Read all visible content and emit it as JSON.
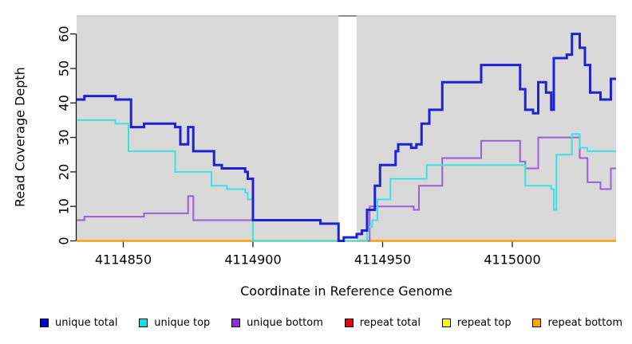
{
  "figure": {
    "xlabel": "Coordinate in Reference Genome",
    "ylabel": "Read Coverage Depth"
  },
  "chart_data": {
    "type": "line",
    "step": true,
    "title": "",
    "xlabel": "Coordinate in Reference Genome",
    "ylabel": "Read Coverage Depth",
    "xlim": [
      4114832,
      4115040
    ],
    "ylim": [
      0,
      65
    ],
    "x_ticks": [
      4114850,
      4114900,
      4114950,
      4115000
    ],
    "y_ticks": [
      0,
      10,
      20,
      30,
      40,
      50,
      60
    ],
    "grid": false,
    "plot_bg": "#d9d9d9",
    "panel_top_border": "#c6c6c6",
    "gap_region": {
      "x0": 4114933,
      "x1": 4114940,
      "color": "#ffffff",
      "top_border": "#8f8f8f"
    },
    "axis_color": "#1a1a1a",
    "series": [
      {
        "name": "repeat total",
        "color": "#e00000",
        "width": 2,
        "points": [
          [
            4114832,
            0
          ]
        ]
      },
      {
        "name": "repeat top",
        "color": "#ffff00",
        "width": 2,
        "points": [
          [
            4114832,
            0
          ]
        ]
      },
      {
        "name": "repeat bottom",
        "color": "#ffa500",
        "width": 2.4,
        "points": [
          [
            4114832,
            0
          ]
        ]
      },
      {
        "name": "unique bottom",
        "color": "#9d5fd3",
        "width": 2,
        "points": [
          [
            4114832,
            6
          ],
          [
            4114835,
            7
          ],
          [
            4114858,
            8
          ],
          [
            4114875,
            13
          ],
          [
            4114877,
            6
          ],
          [
            4114926,
            5
          ],
          [
            4114933,
            0
          ],
          [
            4114945,
            10
          ],
          [
            4114962,
            9
          ],
          [
            4114964,
            16
          ],
          [
            4114973,
            24
          ],
          [
            4114988,
            29
          ],
          [
            4115003,
            23
          ],
          [
            4115005,
            21
          ],
          [
            4115010,
            30
          ],
          [
            4115026,
            24
          ],
          [
            4115029,
            17
          ],
          [
            4115034,
            15
          ],
          [
            4115038,
            21
          ]
        ]
      },
      {
        "name": "unique top",
        "color": "#3ae2e6",
        "width": 2,
        "points": [
          [
            4114832,
            35
          ],
          [
            4114847,
            34
          ],
          [
            4114852,
            26
          ],
          [
            4114870,
            20
          ],
          [
            4114884,
            16
          ],
          [
            4114890,
            15
          ],
          [
            4114897,
            14
          ],
          [
            4114898,
            12
          ],
          [
            4114900,
            0
          ],
          [
            4114944,
            4
          ],
          [
            4114946,
            6
          ],
          [
            4114948,
            12
          ],
          [
            4114953,
            18
          ],
          [
            4114967,
            22
          ],
          [
            4115005,
            16
          ],
          [
            4115015,
            15
          ],
          [
            4115016,
            9
          ],
          [
            4115017,
            25
          ],
          [
            4115023,
            31
          ],
          [
            4115026,
            27
          ],
          [
            4115029,
            26
          ]
        ]
      },
      {
        "name": "unique total",
        "color": "#2020d6",
        "width": 3,
        "points": [
          [
            4114832,
            41
          ],
          [
            4114835,
            42
          ],
          [
            4114847,
            41
          ],
          [
            4114853,
            33
          ],
          [
            4114858,
            34
          ],
          [
            4114870,
            33
          ],
          [
            4114872,
            28
          ],
          [
            4114875,
            33
          ],
          [
            4114877,
            26
          ],
          [
            4114885,
            22
          ],
          [
            4114888,
            21
          ],
          [
            4114897,
            20
          ],
          [
            4114898,
            18
          ],
          [
            4114900,
            6
          ],
          [
            4114926,
            5
          ],
          [
            4114933,
            0
          ],
          [
            4114935,
            1
          ],
          [
            4114940,
            2
          ],
          [
            4114942,
            3
          ],
          [
            4114944,
            9
          ],
          [
            4114947,
            16
          ],
          [
            4114949,
            22
          ],
          [
            4114955,
            26
          ],
          [
            4114956,
            28
          ],
          [
            4114961,
            27
          ],
          [
            4114963,
            28
          ],
          [
            4114965,
            34
          ],
          [
            4114968,
            38
          ],
          [
            4114973,
            46
          ],
          [
            4114988,
            51
          ],
          [
            4115003,
            44
          ],
          [
            4115005,
            38
          ],
          [
            4115008,
            37
          ],
          [
            4115010,
            46
          ],
          [
            4115013,
            43
          ],
          [
            4115015,
            38
          ],
          [
            4115016,
            53
          ],
          [
            4115021,
            54
          ],
          [
            4115023,
            60
          ],
          [
            4115026,
            56
          ],
          [
            4115028,
            51
          ],
          [
            4115030,
            43
          ],
          [
            4115034,
            41
          ],
          [
            4115038,
            47
          ]
        ]
      }
    ],
    "legend": [
      {
        "label": "unique total",
        "color": "#0000e0"
      },
      {
        "label": "unique top",
        "color": "#00e5ee"
      },
      {
        "label": "unique bottom",
        "color": "#8a2be2"
      },
      {
        "label": "repeat total",
        "color": "#ee0000"
      },
      {
        "label": "repeat top",
        "color": "#ffff00"
      },
      {
        "label": "repeat bottom",
        "color": "#ffa500"
      }
    ],
    "legend_position": "bottom"
  }
}
